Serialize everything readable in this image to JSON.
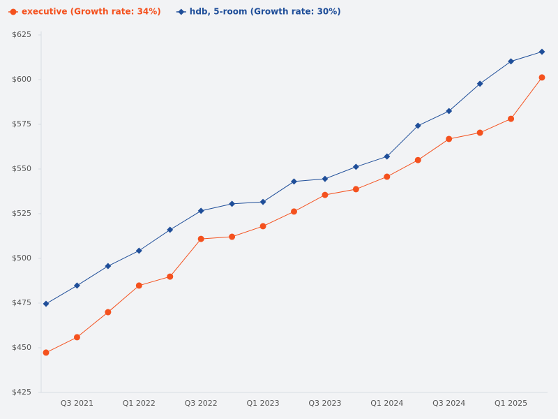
{
  "chart_data": {
    "type": "line",
    "categories": [
      null,
      "Q3 2021",
      null,
      "Q1 2022",
      null,
      "Q3 2022",
      null,
      "Q1 2023",
      null,
      "Q3 2023",
      null,
      "Q1 2024",
      null,
      "Q3 2024",
      null,
      "Q1 2025",
      null
    ],
    "series": [
      {
        "name": "executive (Growth rate: 34%)",
        "color": "#f4511e",
        "marker": "circle",
        "values": [
          447.3,
          455.9,
          469.9,
          484.8,
          489.8,
          510.9,
          512.1,
          518,
          526.2,
          535.5,
          538.7,
          545.7,
          555,
          566.8,
          570.3,
          578.1,
          601.2
        ]
      },
      {
        "name": "hdb, 5-room (Growth rate: 30%)",
        "color": "#1f4e99",
        "marker": "diamond",
        "values": [
          474.6,
          484.8,
          495.7,
          504.3,
          516,
          526.6,
          530.5,
          531.6,
          543,
          544.5,
          551.2,
          557,
          574.2,
          582.4,
          597.7,
          610.2,
          615.6
        ]
      }
    ],
    "ylim": [
      425,
      625
    ],
    "yticks": [
      {
        "value": 425,
        "label": "$425"
      },
      {
        "value": 450,
        "label": "$450"
      },
      {
        "value": 475,
        "label": "$475"
      },
      {
        "value": 500,
        "label": "$500"
      },
      {
        "value": 525,
        "label": "$525"
      },
      {
        "value": 550,
        "label": "$550"
      },
      {
        "value": 575,
        "label": "$575"
      },
      {
        "value": 600,
        "label": "$600"
      },
      {
        "value": 625,
        "label": "$625"
      }
    ],
    "grid": false,
    "legend": "top-left"
  }
}
